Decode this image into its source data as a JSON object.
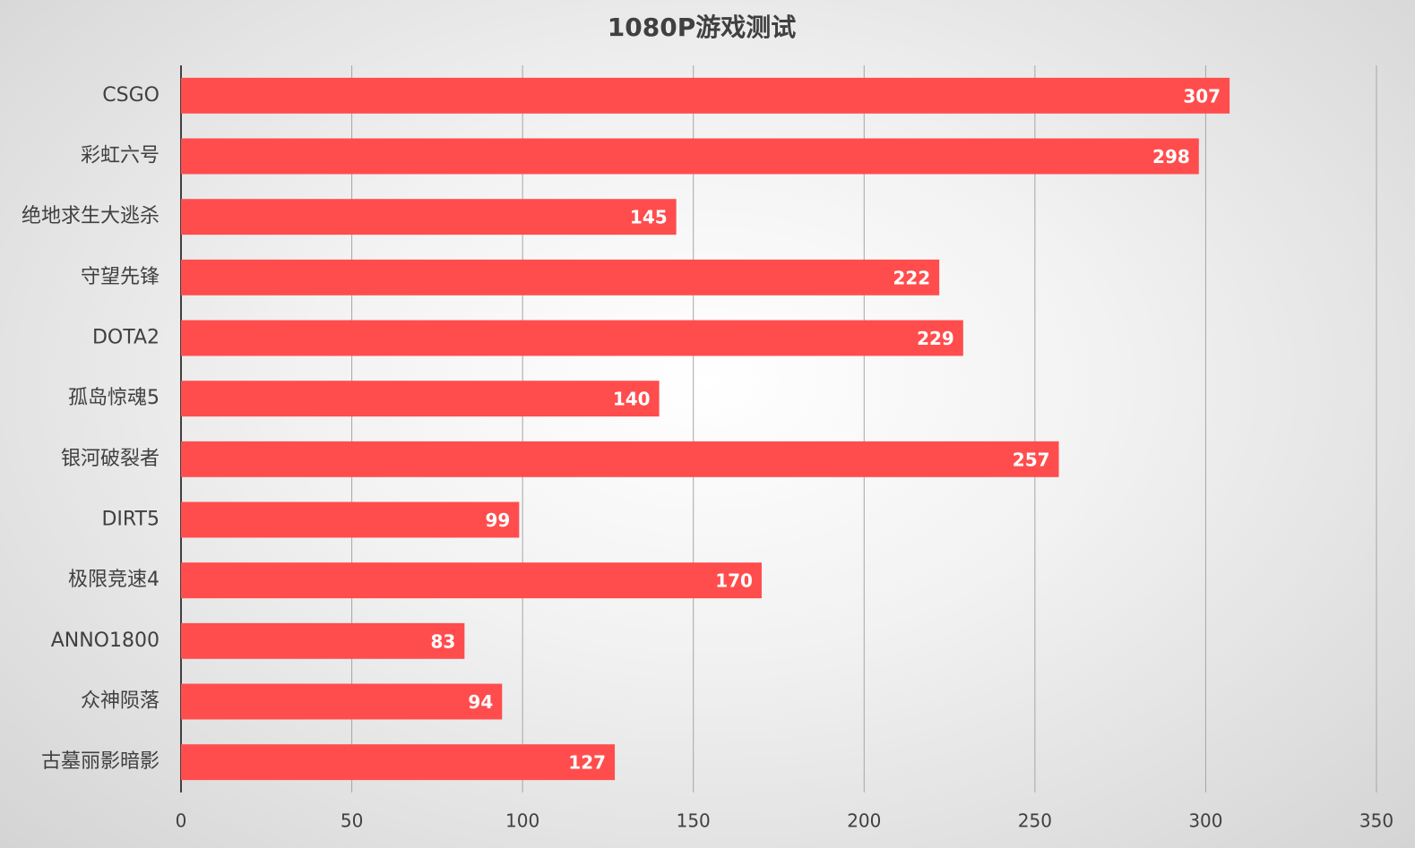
{
  "chart_data": {
    "type": "bar",
    "orientation": "horizontal",
    "title": "1080P游戏测试",
    "categories": [
      "CSGO",
      "彩虹六号",
      "绝地求生大逃杀",
      "守望先锋",
      "DOTA2",
      "孤岛惊魂5",
      "银河破裂者",
      "DIRT5",
      "极限竞速4",
      "ANNO1800",
      "众神陨落",
      "古墓丽影暗影"
    ],
    "values": [
      307,
      298,
      145,
      222,
      229,
      140,
      257,
      99,
      170,
      83,
      94,
      127
    ],
    "color": "#ff4d4d",
    "xlim": [
      0,
      350
    ],
    "xticks": [
      0,
      50,
      100,
      150,
      200,
      250,
      300,
      350
    ],
    "grid": true
  }
}
